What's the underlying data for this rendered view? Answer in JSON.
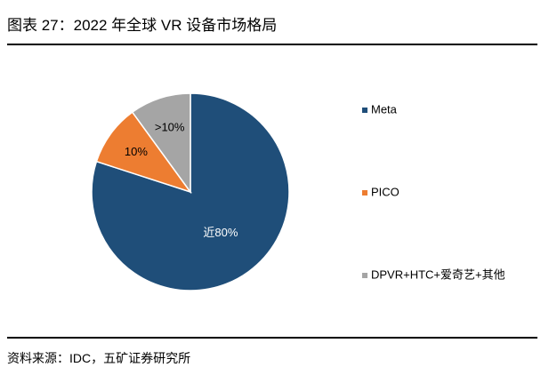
{
  "figure": {
    "title": "图表 27：2022 年全球 VR 设备市场格局",
    "source": "资料来源：IDC，五矿证券研究所"
  },
  "chart_data": {
    "type": "pie",
    "title": "2022 年全球 VR 设备市场格局",
    "categories": [
      "Meta",
      "PICO",
      "DPVR+HTC+爱奇艺+其他"
    ],
    "values": [
      80,
      10,
      10
    ],
    "data_labels": [
      "近80%",
      "10%",
      ">10%"
    ],
    "colors": [
      "#1F4E79",
      "#ED7D31",
      "#A5A5A5"
    ],
    "label_colors": [
      "#ffffff",
      "#000000",
      "#000000"
    ],
    "legend_position": "right"
  }
}
